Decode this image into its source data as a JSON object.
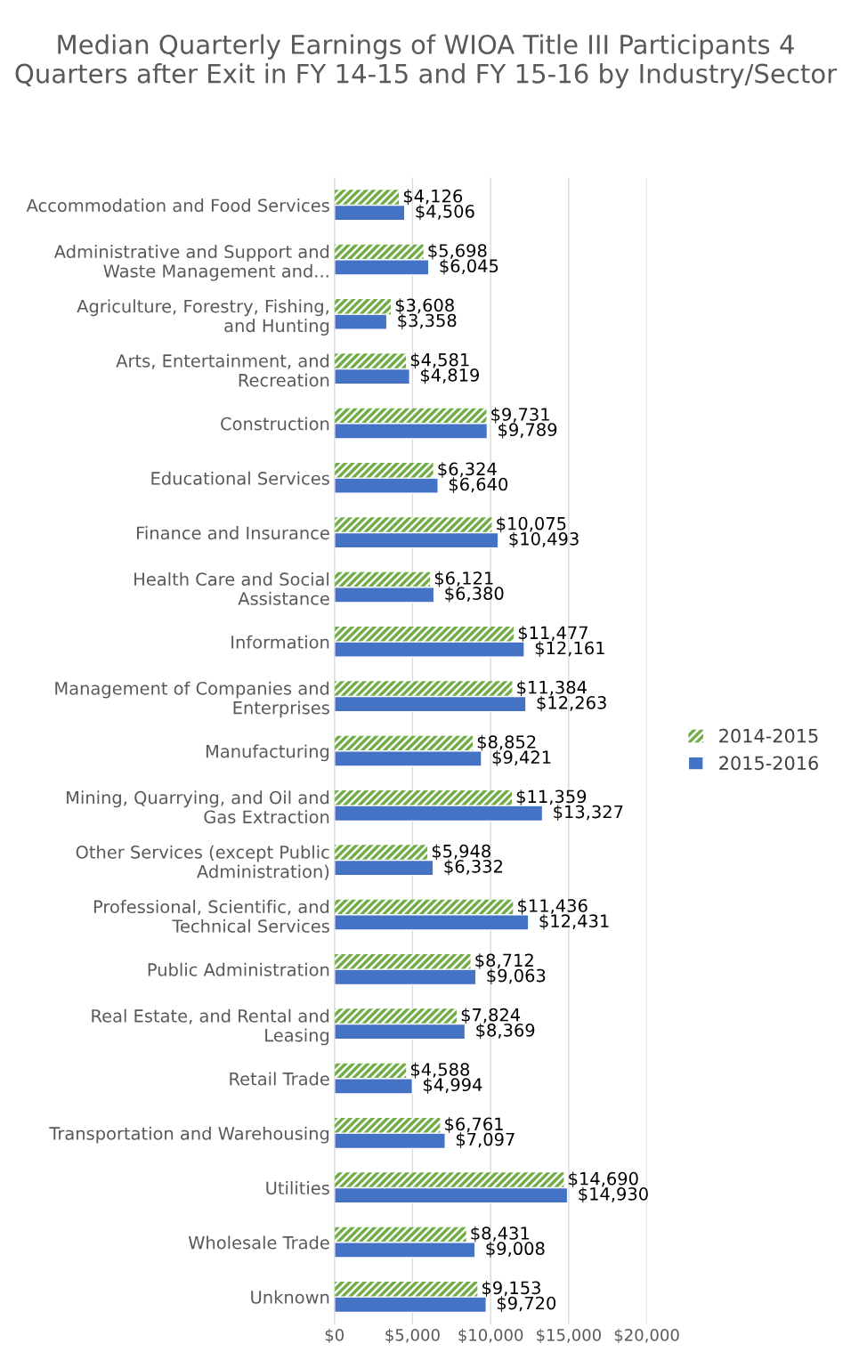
{
  "chart_data": {
    "type": "bar",
    "orientation": "horizontal",
    "title": "Median Quarterly Earnings of WIOA Title III Participants 4 Quarters after Exit in FY 14-15 and FY 15-16 by Industry/Sector",
    "categories": [
      "Accommodation and Food Services",
      "Administrative and Support and Waste Management and...",
      "Agriculture, Forestry, Fishing, and Hunting",
      "Arts, Entertainment, and Recreation",
      "Construction",
      "Educational Services",
      "Finance and Insurance",
      "Health Care and Social Assistance",
      "Information",
      "Management of Companies and Enterprises",
      "Manufacturing",
      "Mining, Quarrying, and Oil and Gas Extraction",
      "Other Services (except Public Administration)",
      "Professional, Scientific, and Technical Services",
      "Public Administration",
      "Real Estate, and Rental and Leasing",
      "Retail Trade",
      "Transportation and Warehousing",
      "Utilities",
      "Wholesale Trade",
      "Unknown"
    ],
    "series": [
      {
        "name": "2014-2015",
        "color": "#70ad47",
        "values": [
          4126,
          5698,
          3608,
          4581,
          9731,
          6324,
          10075,
          6121,
          11477,
          11384,
          8852,
          11359,
          5948,
          11436,
          8712,
          7824,
          4588,
          6761,
          14690,
          8431,
          9153
        ],
        "value_labels": [
          "$4,126",
          "$5,698",
          "$3,608",
          "$4,581",
          "$9,731",
          "$6,324",
          "$10,075",
          "$6,121",
          "$11,477",
          "$11,384",
          "$8,852",
          "$11,359",
          "$5,948",
          "$11,436",
          "$8,712",
          "$7,824",
          "$4,588",
          "$6,761",
          "$14,690",
          "$8,431",
          "$9,153"
        ]
      },
      {
        "name": "2015-2016",
        "color": "#4472c4",
        "values": [
          4506,
          6045,
          3358,
          4819,
          9789,
          6640,
          10493,
          6380,
          12161,
          12263,
          9421,
          13327,
          6332,
          12431,
          9063,
          8369,
          4994,
          7097,
          14930,
          9008,
          9720
        ],
        "value_labels": [
          "$4,506",
          "$6,045",
          "$3,358",
          "$4,819",
          "$9,789",
          "$6,640",
          "$10,493",
          "$6,380",
          "$12,161",
          "$12,263",
          "$9,421",
          "$13,327",
          "$6,332",
          "$12,431",
          "$9,063",
          "$8,369",
          "$4,994",
          "$7,097",
          "$14,930",
          "$9,008",
          "$9,720"
        ]
      }
    ],
    "xlim": [
      0,
      20000
    ],
    "xticks": [
      {
        "value": 0,
        "label": "$0"
      },
      {
        "value": 5000,
        "label": "$5,000"
      },
      {
        "value": 10000,
        "label": "$10,000"
      },
      {
        "value": 15000,
        "label": "$15,000"
      },
      {
        "value": 20000,
        "label": "$20,000"
      }
    ],
    "grid": "x",
    "legend": "right"
  }
}
